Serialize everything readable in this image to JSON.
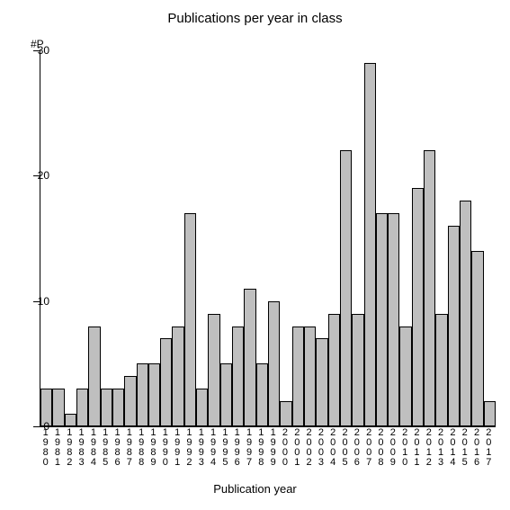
{
  "chart": {
    "type": "bar",
    "title": "Publications per year in class",
    "title_fontsize": 15,
    "y_axis_label": "#P",
    "x_axis_title": "Publication year",
    "x_axis_title_fontsize": 13,
    "background_color": "#ffffff",
    "bar_fill": "#bfbfbf",
    "bar_border": "#000000",
    "axis_color": "#000000",
    "ylim": [
      0,
      30
    ],
    "yticks": [
      0,
      10,
      20,
      30
    ],
    "label_fontsize": 12,
    "xlabel_fontsize": 11,
    "bar_width_ratio": 1.0,
    "years": [
      "1980",
      "1981",
      "1982",
      "1983",
      "1984",
      "1985",
      "1986",
      "1987",
      "1988",
      "1989",
      "1990",
      "1991",
      "1992",
      "1993",
      "1994",
      "1995",
      "1996",
      "1997",
      "1998",
      "1999",
      "2000",
      "2001",
      "2002",
      "2003",
      "2004",
      "2005",
      "2006",
      "2007",
      "2008",
      "2009",
      "2010",
      "2011",
      "2012",
      "2013",
      "2014",
      "2015",
      "2016",
      "2017"
    ],
    "values": [
      3,
      3,
      1,
      3,
      8,
      3,
      3,
      4,
      5,
      5,
      7,
      8,
      17,
      3,
      9,
      5,
      8,
      11,
      5,
      10,
      2,
      8,
      8,
      7,
      9,
      22,
      9,
      29,
      17,
      17,
      8,
      19,
      22,
      9,
      16,
      18,
      14,
      2
    ]
  }
}
